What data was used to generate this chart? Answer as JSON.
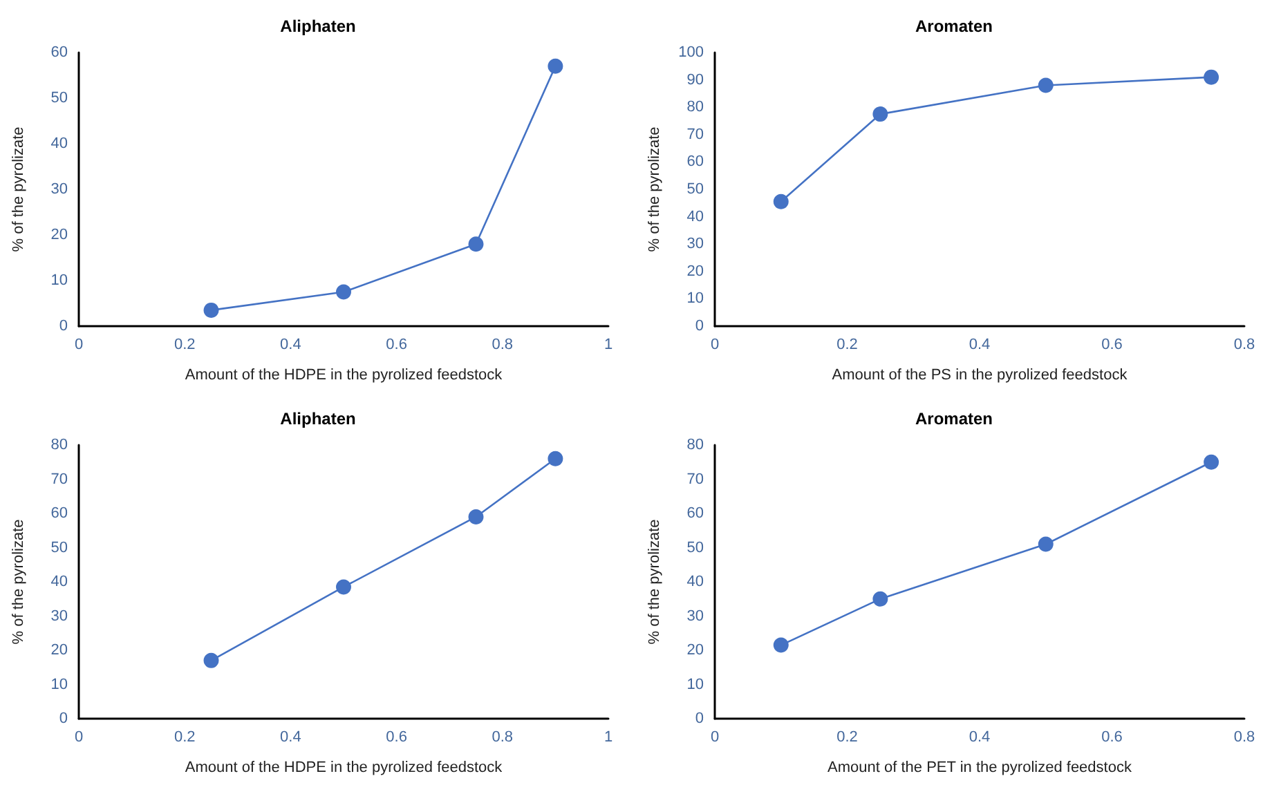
{
  "chart_data": [
    {
      "type": "line",
      "title": "Aliphaten",
      "xlabel": "Amount of the HDPE in the pyrolized feedstock",
      "ylabel": "% of the pyrolizate",
      "x": [
        0.25,
        0.5,
        0.75,
        0.9
      ],
      "xlim": [
        0,
        1
      ],
      "xticks": [
        0,
        0.2,
        0.4,
        0.6,
        0.8,
        1
      ],
      "ylim": [
        0,
        60
      ],
      "yticks": [
        0,
        10,
        20,
        30,
        40,
        50,
        60
      ],
      "marker": "circle",
      "series": [
        {
          "color": "#4472c4",
          "values": [
            3.5,
            7.5,
            18,
            57
          ]
        }
      ]
    },
    {
      "type": "line",
      "title": "Aromaten",
      "xlabel": "Amount of the PS in the pyrolized feedstock",
      "ylabel": "% of the pyrolizate",
      "x": [
        0.1,
        0.25,
        0.5,
        0.75
      ],
      "xlim": [
        0,
        0.8
      ],
      "xticks": [
        0,
        0.2,
        0.4,
        0.6,
        0.8
      ],
      "ylim": [
        0,
        100
      ],
      "yticks": [
        0,
        10,
        20,
        30,
        40,
        50,
        60,
        70,
        80,
        90,
        100
      ],
      "marker": "circle",
      "series": [
        {
          "color": "#4472c4",
          "values": [
            45.5,
            77.5,
            88,
            91
          ]
        }
      ]
    },
    {
      "type": "line",
      "title": "Aliphaten",
      "xlabel": "Amount of the HDPE in the pyrolized feedstock",
      "ylabel": "% of the pyrolizate",
      "x": [
        0.25,
        0.5,
        0.75,
        0.9
      ],
      "xlim": [
        0,
        1
      ],
      "xticks": [
        0,
        0.2,
        0.4,
        0.6,
        0.8,
        1
      ],
      "ylim": [
        0,
        80
      ],
      "yticks": [
        0,
        10,
        20,
        30,
        40,
        50,
        60,
        70,
        80
      ],
      "marker": "circle",
      "series": [
        {
          "color": "#4472c4",
          "values": [
            17,
            38.5,
            59,
            76
          ]
        }
      ]
    },
    {
      "type": "line",
      "title": "Aromaten",
      "xlabel": "Amount of the PET in the pyrolized feedstock",
      "ylabel": "% of the pyrolizate",
      "x": [
        0.1,
        0.25,
        0.5,
        0.75
      ],
      "xlim": [
        0,
        0.8
      ],
      "xticks": [
        0,
        0.2,
        0.4,
        0.6,
        0.8
      ],
      "ylim": [
        0,
        80
      ],
      "yticks": [
        0,
        10,
        20,
        30,
        40,
        50,
        60,
        70,
        80
      ],
      "marker": "circle",
      "series": [
        {
          "color": "#4472c4",
          "values": [
            21.5,
            35,
            51,
            75
          ]
        }
      ]
    }
  ]
}
